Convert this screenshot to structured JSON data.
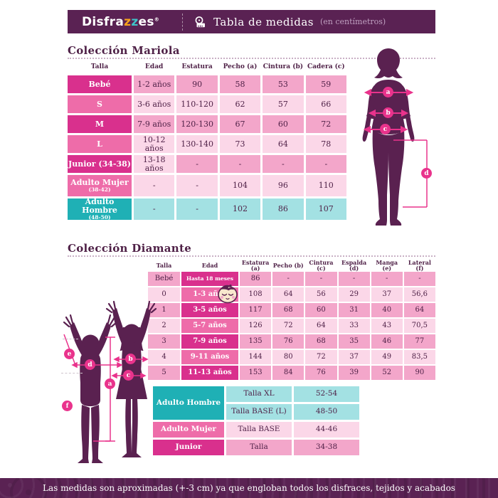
{
  "header": {
    "logo_part1": "Disfra",
    "logo_z1": "z",
    "logo_z2": "z",
    "logo_part2": "es",
    "logo_reg": "®",
    "title": "Tabla de medidas",
    "subtitle": "(en centímetros)",
    "tape_icon": "measuring-tape-icon"
  },
  "colors": {
    "bar_purple": "#5a2253",
    "dark_pink": "#d9308d",
    "mid_pink": "#ee6ca9",
    "row_pink": "#f3a6ca",
    "row_light_pink": "#fbd7e8",
    "teal": "#1fb0b5",
    "teal_light": "#a3e1e3",
    "marker_pink": "#e9338c",
    "silhouette": "#5a2150",
    "text_plum": "#4f2147"
  },
  "markers": {
    "a": "a",
    "b": "b",
    "c": "c",
    "d": "d",
    "e": "e",
    "f": "f"
  },
  "mariola": {
    "title": "Colección Mariola",
    "columns": [
      "Talla",
      "Edad",
      "Estatura",
      "Pecho (a)",
      "Cintura (b)",
      "Cadera (c)"
    ],
    "rows": [
      {
        "label": "Bebé",
        "sublabel": "",
        "label_bg": "dark",
        "cells": [
          "1-2 años",
          "90",
          "58",
          "53",
          "59"
        ],
        "cell_bgs": [
          "medium",
          "medium",
          "medium",
          "medium",
          "medium"
        ]
      },
      {
        "label": "S",
        "sublabel": "",
        "label_bg": "mid",
        "cells": [
          "3-6 años",
          "110-120",
          "62",
          "57",
          "66"
        ],
        "cell_bgs": [
          "light",
          "light",
          "light",
          "light",
          "light"
        ]
      },
      {
        "label": "M",
        "sublabel": "",
        "label_bg": "dark",
        "cells": [
          "7-9 años",
          "120-130",
          "67",
          "60",
          "72"
        ],
        "cell_bgs": [
          "medium",
          "medium",
          "medium",
          "medium",
          "medium"
        ]
      },
      {
        "label": "L",
        "sublabel": "",
        "label_bg": "mid",
        "cells": [
          "10-12 años",
          "130-140",
          "73",
          "64",
          "78"
        ],
        "cell_bgs": [
          "light",
          "light",
          "light",
          "light",
          "light"
        ]
      },
      {
        "label": "Junior (34-38)",
        "sublabel": "",
        "label_bg": "dark",
        "cells": [
          "13-18 años",
          "-",
          "-",
          "-",
          "-"
        ],
        "cell_bgs": [
          "light",
          "medium",
          "medium",
          "medium",
          "medium"
        ]
      },
      {
        "label": "Adulto Mujer",
        "sublabel": "(38-42)",
        "label_bg": "mid",
        "cells": [
          "-",
          "-",
          "104",
          "96",
          "110"
        ],
        "cell_bgs": [
          "light",
          "light",
          "light",
          "light",
          "light"
        ]
      },
      {
        "label": "Adulto Hombre",
        "sublabel": "(48-50)",
        "label_bg": "teal",
        "cells": [
          "-",
          "-",
          "102",
          "86",
          "107"
        ],
        "cell_bgs": [
          "teal-light",
          "teal-light",
          "teal-light",
          "teal-light",
          "teal-light"
        ]
      }
    ]
  },
  "diamante": {
    "title": "Colección Diamante",
    "columns": [
      "Talla",
      "Edad",
      "Estatura (a)",
      "Pecho (b)",
      "Cintura (c)",
      "Espalda (d)",
      "Manga (e)",
      "Lateral (f)"
    ],
    "rows": [
      {
        "talla": "Bebé",
        "talla_bg": "medium",
        "edad": "Hasta 18 meses",
        "edad_small": true,
        "edad_bg": "dark",
        "cells": [
          "86",
          "-",
          "-",
          "-",
          "-",
          "-"
        ],
        "cells_bg": "medium"
      },
      {
        "talla": "0",
        "talla_bg": "light",
        "edad": "1-3  años",
        "edad_small": false,
        "edad_bg": "mid",
        "cells": [
          "108",
          "64",
          "56",
          "29",
          "37",
          "56,6"
        ],
        "cells_bg": "light"
      },
      {
        "talla": "1",
        "talla_bg": "medium",
        "edad": "3-5 años",
        "edad_small": false,
        "edad_bg": "dark",
        "cells": [
          "117",
          "68",
          "60",
          "31",
          "40",
          "64"
        ],
        "cells_bg": "medium"
      },
      {
        "talla": "2",
        "talla_bg": "light",
        "edad": "5-7  años",
        "edad_small": false,
        "edad_bg": "mid",
        "cells": [
          "126",
          "72",
          "64",
          "33",
          "43",
          "70,5"
        ],
        "cells_bg": "light"
      },
      {
        "talla": "3",
        "talla_bg": "medium",
        "edad": "7-9  años",
        "edad_small": false,
        "edad_bg": "dark",
        "cells": [
          "135",
          "76",
          "68",
          "35",
          "46",
          "77"
        ],
        "cells_bg": "medium"
      },
      {
        "talla": "4",
        "talla_bg": "light",
        "edad": "9-11  años",
        "edad_small": false,
        "edad_bg": "mid",
        "cells": [
          "144",
          "80",
          "72",
          "37",
          "49",
          "83,5"
        ],
        "cells_bg": "light"
      },
      {
        "talla": "5",
        "talla_bg": "medium",
        "edad": "11-13  años",
        "edad_small": false,
        "edad_bg": "dark",
        "cells": [
          "153",
          "84",
          "76",
          "39",
          "52",
          "90"
        ],
        "cells_bg": "medium"
      }
    ]
  },
  "adult_table": {
    "groups": [
      {
        "label": "Adulto Hombre",
        "label_bg": "teal",
        "span": 2,
        "rows": [
          {
            "name": "Talla XL",
            "range": "52-54",
            "bg": "teal-light"
          },
          {
            "name": "Talla BASE (L)",
            "range": "48-50",
            "bg": "teal-light"
          }
        ]
      },
      {
        "label": "Adulto Mujer",
        "label_bg": "mid",
        "span": 1,
        "rows": [
          {
            "name": "Talla BASE",
            "range": "44-46",
            "bg": "light"
          }
        ]
      },
      {
        "label": "Junior",
        "label_bg": "dark",
        "span": 1,
        "rows": [
          {
            "name": "Talla",
            "range": "34-38",
            "bg": "medium"
          }
        ]
      }
    ]
  },
  "footer": {
    "text": "Las medidas son aproximadas (+-3 cm) ya que engloban todos los disfraces, tejidos y acabados"
  }
}
